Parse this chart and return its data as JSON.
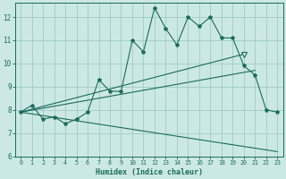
{
  "xlabel": "Humidex (Indice chaleur)",
  "bg_color": "#cce8e4",
  "grid_color": "#9eccc6",
  "line_color": "#1a6b5c",
  "xlim": [
    -0.5,
    23.5
  ],
  "ylim": [
    6,
    12.6
  ],
  "xticks": [
    0,
    1,
    2,
    3,
    4,
    5,
    6,
    7,
    8,
    9,
    10,
    11,
    12,
    13,
    14,
    15,
    16,
    17,
    18,
    19,
    20,
    21,
    22,
    23
  ],
  "yticks": [
    6,
    7,
    8,
    9,
    10,
    11,
    12
  ],
  "line1_x": [
    0,
    1,
    2,
    3,
    4,
    5,
    6,
    7,
    8,
    9,
    10,
    11,
    12,
    13,
    14,
    15,
    16,
    17,
    18,
    19,
    20,
    21,
    22,
    23
  ],
  "line1_y": [
    7.9,
    8.2,
    7.6,
    7.7,
    7.4,
    7.6,
    7.9,
    9.3,
    8.8,
    8.8,
    11.0,
    10.5,
    12.4,
    11.5,
    10.8,
    12.0,
    11.6,
    12.0,
    11.1,
    11.1,
    9.9,
    9.5,
    8.0,
    7.9
  ],
  "line2_x": [
    0,
    20
  ],
  "line2_y": [
    7.9,
    10.4
  ],
  "line3_x": [
    0,
    21
  ],
  "line3_y": [
    7.9,
    9.7
  ],
  "line4_x": [
    0,
    23
  ],
  "line4_y": [
    7.9,
    6.2
  ],
  "tri_x": 20,
  "tri_y": 10.4
}
